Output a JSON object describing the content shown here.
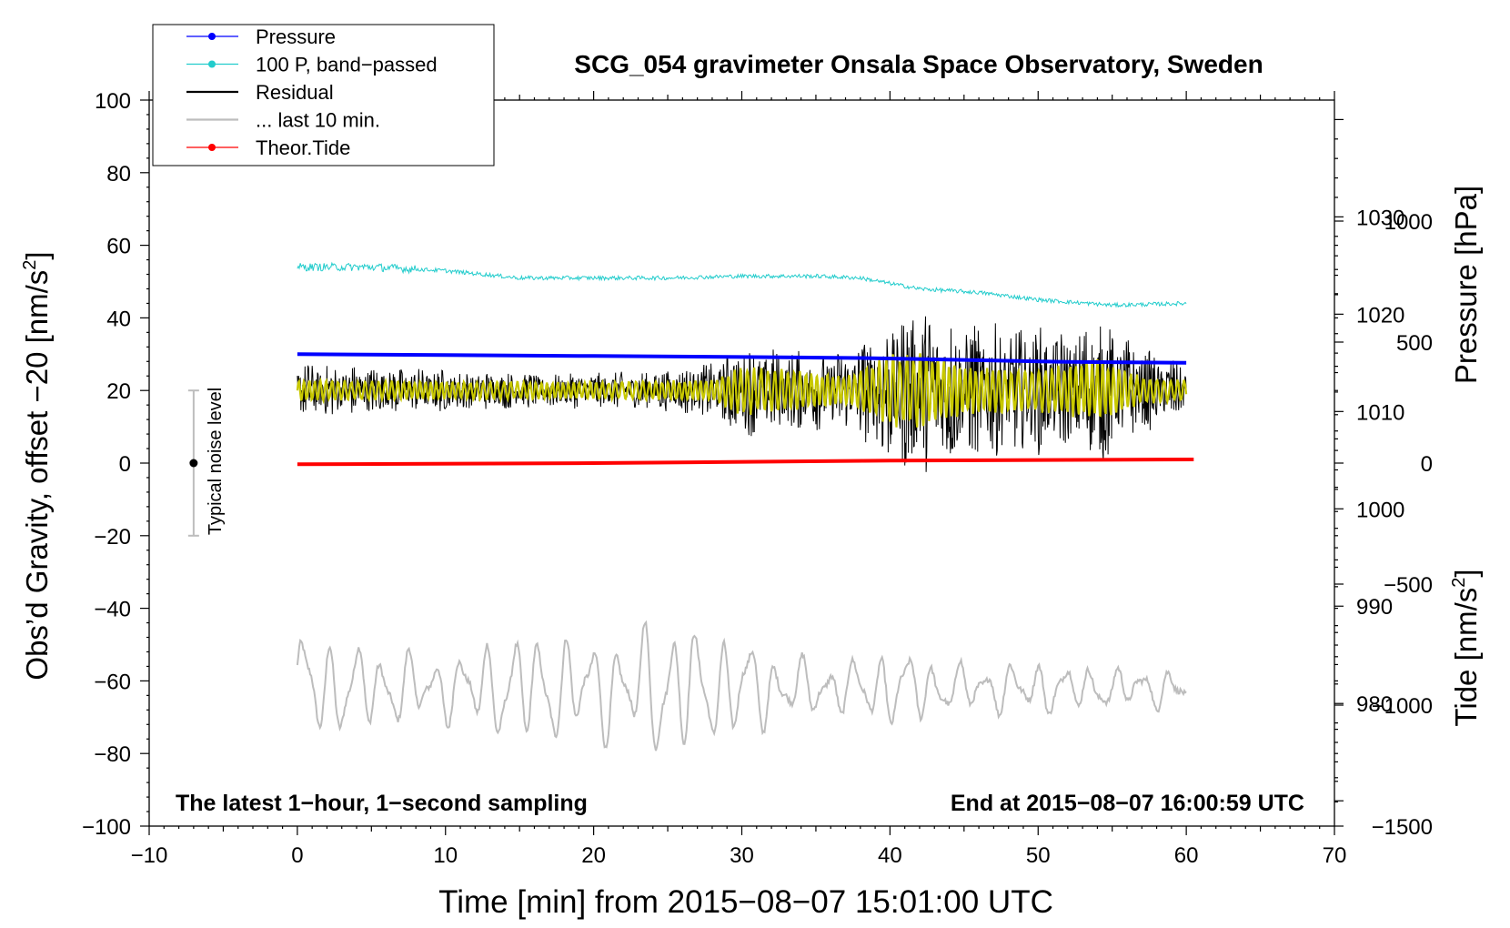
{
  "chart_data": {
    "type": "line",
    "title": "SCG_054 gravimeter Onsala Space Observatory, Sweden",
    "xlabel": "Time [min] from 2015−08−07 15:01:00 UTC",
    "ylabel_left_main": "Obs’d Gravity, offset −20 [nm/s",
    "ylabel_left_sup": "2",
    "ylabel_left_close": "]",
    "ylabel_right_pressure": "Pressure [hPa]",
    "ylabel_right_tide_main": "Tide [nm/s",
    "ylabel_right_tide_sup": "2",
    "ylabel_right_tide_close": "]",
    "note_left": "The latest 1−hour, 1−second sampling",
    "note_right": "End at 2015−08−07 16:00:59 UTC",
    "noise_label": "Typical noise level",
    "xlim": [
      -10,
      70
    ],
    "ylim": [
      -100,
      100
    ],
    "pressure_lim": [
      967.4,
      1042
    ],
    "tide_lim": [
      -1500,
      1500
    ],
    "x_ticks": [
      {
        "v": -10,
        "label": "−10"
      },
      {
        "v": 0,
        "label": "0"
      },
      {
        "v": 10,
        "label": "10"
      },
      {
        "v": 20,
        "label": "20"
      },
      {
        "v": 30,
        "label": "30"
      },
      {
        "v": 40,
        "label": "40"
      },
      {
        "v": 50,
        "label": "50"
      },
      {
        "v": 60,
        "label": "60"
      },
      {
        "v": 70,
        "label": "70"
      }
    ],
    "y_ticks": [
      {
        "v": 100,
        "label": "100"
      },
      {
        "v": 80,
        "label": "80"
      },
      {
        "v": 60,
        "label": "60"
      },
      {
        "v": 40,
        "label": "40"
      },
      {
        "v": 20,
        "label": "20"
      },
      {
        "v": 0,
        "label": "0"
      },
      {
        "v": -20,
        "label": "−20"
      },
      {
        "v": -40,
        "label": "−40"
      },
      {
        "v": -60,
        "label": "−60"
      },
      {
        "v": -80,
        "label": "−80"
      },
      {
        "v": -100,
        "label": "−100"
      }
    ],
    "pressure_ticks": [
      {
        "v": 1030,
        "label": "1030"
      },
      {
        "v": 1020,
        "label": "1020"
      },
      {
        "v": 1010,
        "label": "1010"
      },
      {
        "v": 1000,
        "label": "1000"
      },
      {
        "v": 990,
        "label": "990"
      },
      {
        "v": 980,
        "label": "980"
      }
    ],
    "tide_ticks": [
      {
        "v": 1000,
        "label": "1000"
      },
      {
        "v": 500,
        "label": "500"
      },
      {
        "v": 0,
        "label": "0"
      },
      {
        "v": -500,
        "label": "−500"
      },
      {
        "v": -1000,
        "label": "−1000"
      },
      {
        "v": -1500,
        "label": "−1500"
      }
    ],
    "legend": [
      {
        "label": "Pressure",
        "color": "#0000ff",
        "marker": true
      },
      {
        "label": "100 P, band−passed",
        "color": "#22cccc",
        "marker": true
      },
      {
        "label": "Residual",
        "color": "#000000",
        "marker": false
      },
      {
        "label": "... last 10 min.",
        "color": "#bdbdbd",
        "marker": false
      },
      {
        "label": "Theor.Tide",
        "color": "#ff0000",
        "marker": true
      }
    ],
    "series": {
      "pressure": {
        "name": "Pressure",
        "color": "#0000ff",
        "x": [
          0,
          10,
          20,
          30,
          38,
          45,
          52,
          60
        ],
        "y": [
          1015.9,
          1015.8,
          1015.7,
          1015.6,
          1015.5,
          1015.3,
          1015.1,
          1015.0
        ]
      },
      "bandpassed": {
        "name": "100 P, band−passed",
        "color": "#22cccc",
        "x": [
          0,
          5,
          10,
          15,
          20,
          25,
          30,
          35,
          38,
          42,
          46,
          50,
          55,
          60
        ],
        "y": [
          54,
          54,
          53,
          51,
          51,
          51,
          51.5,
          51.5,
          51,
          48,
          47,
          45,
          43.5,
          44
        ]
      },
      "theor_tide": {
        "name": "Theor.Tide",
        "color": "#ff0000",
        "x": [
          0,
          20,
          40,
          60.5
        ],
        "y": [
          -5,
          0,
          10,
          15
        ]
      },
      "noise_bar": {
        "x": -7,
        "center": 0,
        "low": -20,
        "high": 20
      },
      "residual": {
        "name": "Residual",
        "color": "#000000",
        "center": 20,
        "amplitude_env": [
          [
            0,
            8
          ],
          [
            5,
            7
          ],
          [
            10,
            6
          ],
          [
            15,
            5
          ],
          [
            20,
            5
          ],
          [
            25,
            6
          ],
          [
            28,
            8
          ],
          [
            30,
            13
          ],
          [
            32,
            12
          ],
          [
            36,
            11
          ],
          [
            38,
            14
          ],
          [
            40,
            22
          ],
          [
            42,
            24
          ],
          [
            45,
            20
          ],
          [
            48,
            18
          ],
          [
            50,
            18
          ],
          [
            52,
            17
          ],
          [
            54,
            22
          ],
          [
            56,
            15
          ],
          [
            58,
            10
          ],
          [
            60,
            8
          ]
        ]
      },
      "filtered": {
        "name": "yellow filtered",
        "color": "#c8c800",
        "center": 20,
        "amplitude_env": [
          [
            0,
            3
          ],
          [
            10,
            2.5
          ],
          [
            20,
            2.5
          ],
          [
            28,
            3
          ],
          [
            30,
            7
          ],
          [
            33,
            6
          ],
          [
            37,
            4
          ],
          [
            40,
            10
          ],
          [
            42,
            11
          ],
          [
            45,
            7
          ],
          [
            50,
            6
          ],
          [
            54,
            9
          ],
          [
            57,
            4
          ],
          [
            60,
            3
          ]
        ]
      },
      "last10": {
        "name": "... last 10 min.",
        "color": "#bdbdbd",
        "center": -62,
        "amplitude_env": [
          [
            0,
            18
          ],
          [
            5,
            12
          ],
          [
            10,
            10
          ],
          [
            15,
            17
          ],
          [
            20,
            15
          ],
          [
            23,
            17
          ],
          [
            25,
            24
          ],
          [
            27,
            17
          ],
          [
            30,
            16
          ],
          [
            33,
            9
          ],
          [
            37,
            8
          ],
          [
            40,
            12
          ],
          [
            45,
            7
          ],
          [
            50,
            8
          ],
          [
            55,
            6
          ],
          [
            60,
            6
          ]
        ]
      }
    }
  }
}
